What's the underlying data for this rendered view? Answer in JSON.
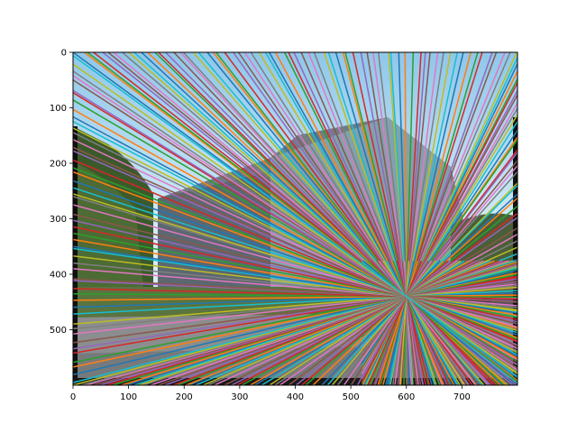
{
  "chart_data": {
    "type": "line",
    "title": "",
    "xlabel": "",
    "ylabel": "",
    "xlim": [
      0,
      800
    ],
    "ylim": [
      600,
      0
    ],
    "y_axis_inverted": true,
    "grid": false,
    "legend": "none",
    "background": "photo of a modern multi-storey glass and brick building under a blue sky, trees on the left, road and parked cars at bottom",
    "x_ticks": [
      0,
      100,
      200,
      300,
      400,
      500,
      600,
      700
    ],
    "y_ticks": [
      0,
      100,
      200,
      300,
      400,
      500
    ],
    "x_tick_labels": [
      "0",
      "100",
      "200",
      "300",
      "400",
      "500",
      "600",
      "700"
    ],
    "y_tick_labels": [
      "0",
      "100",
      "200",
      "300",
      "400",
      "500"
    ],
    "convergence_point": [
      600,
      440
    ],
    "line_count_estimate": 240,
    "series_colors": [
      "#1f77b4",
      "#ff7f0e",
      "#2ca02c",
      "#d62728",
      "#9467bd",
      "#8c564b",
      "#e377c2",
      "#7f7f7f",
      "#bcbd22",
      "#17becf"
    ]
  }
}
